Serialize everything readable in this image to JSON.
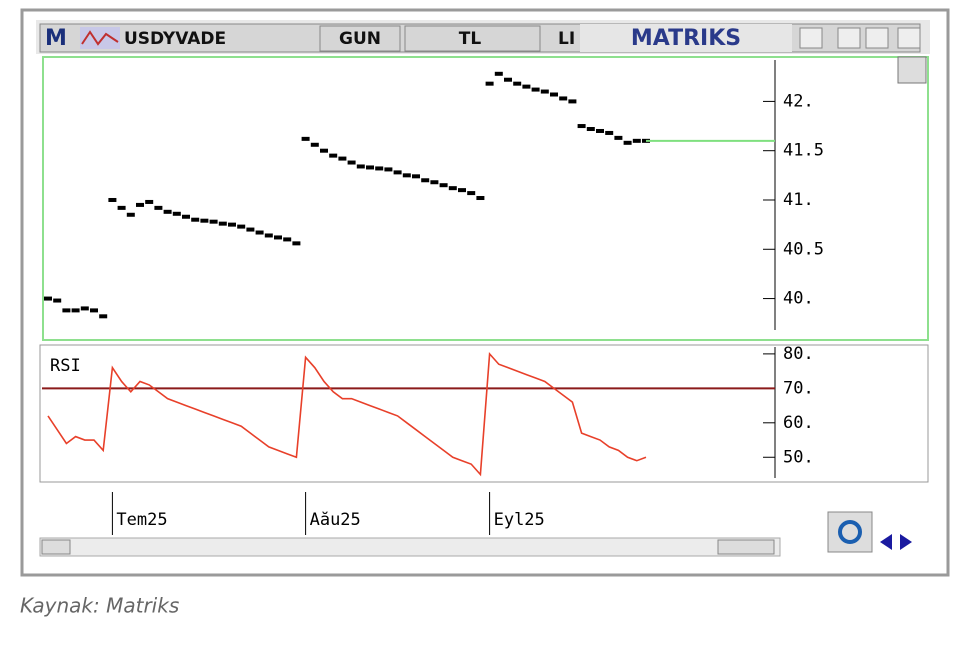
{
  "window": {
    "logo": "M",
    "symbol": "USDYVADE",
    "period": "GUN",
    "currency": "TL",
    "menu": "LI",
    "brand": "MATRIKS"
  },
  "caption": "Kaynak: Matriks",
  "chart_data": [
    {
      "type": "marks",
      "categories": [
        null,
        null,
        null,
        null,
        null,
        null,
        null,
        "Tem25",
        null,
        null,
        null,
        null,
        null,
        null,
        null,
        null,
        null,
        null,
        null,
        null,
        null,
        null,
        null,
        null,
        null,
        null,
        null,
        null,
        "Aău25",
        null,
        null,
        null,
        null,
        null,
        null,
        null,
        null,
        null,
        null,
        null,
        null,
        null,
        null,
        null,
        null,
        null,
        null,
        null,
        "Eyl25",
        null,
        null,
        null,
        null,
        null,
        null,
        null,
        null,
        null,
        null,
        null,
        null,
        null,
        null,
        null,
        null,
        null
      ],
      "values": [
        40.0,
        39.98,
        39.88,
        39.88,
        39.9,
        39.88,
        39.82,
        41.0,
        40.92,
        40.85,
        40.95,
        40.98,
        40.92,
        40.88,
        40.86,
        40.83,
        40.8,
        40.79,
        40.78,
        40.76,
        40.75,
        40.73,
        40.7,
        40.67,
        40.64,
        40.62,
        40.6,
        40.56,
        41.62,
        41.56,
        41.5,
        41.45,
        41.42,
        41.38,
        41.34,
        41.33,
        41.32,
        41.31,
        41.28,
        41.25,
        41.24,
        41.2,
        41.18,
        41.15,
        41.12,
        41.1,
        41.07,
        41.02,
        42.18,
        42.28,
        42.22,
        42.18,
        42.15,
        42.12,
        42.1,
        42.07,
        42.03,
        42.0,
        41.75,
        41.72,
        41.7,
        41.68,
        41.63,
        41.58,
        41.6,
        41.6
      ],
      "color": "#000000",
      "last_value_line_color": "#7fe07f",
      "ylim": [
        39.6,
        42.42
      ],
      "yticks": [
        {
          "value": 40,
          "label": "40."
        },
        40.5,
        {
          "value": 41,
          "label": "41."
        },
        41.5,
        {
          "value": 42,
          "label": "42."
        }
      ]
    },
    {
      "type": "line",
      "title": "RSI",
      "values": [
        62,
        58,
        54,
        56,
        55,
        55,
        52,
        76,
        72,
        69,
        72,
        71,
        69,
        67,
        66,
        65,
        64,
        63,
        62,
        61,
        60,
        59,
        57,
        55,
        53,
        52,
        51,
        50,
        79,
        76,
        72,
        69,
        67,
        67,
        66,
        65,
        64,
        63,
        62,
        60,
        58,
        56,
        54,
        52,
        50,
        49,
        48,
        45,
        80,
        77,
        76,
        75,
        74,
        73,
        72,
        70,
        68,
        66,
        57,
        56,
        55,
        53,
        52,
        50,
        49,
        50
      ],
      "color": "#e8402a",
      "reference_line": 70,
      "reference_color": "#8b1a1a",
      "ylim": [
        43.4,
        82
      ],
      "yticks": [
        {
          "value": 50,
          "label": "50."
        },
        {
          "value": 60,
          "label": "60."
        },
        {
          "value": 70,
          "label": "70."
        },
        {
          "value": 80,
          "label": "80."
        }
      ]
    }
  ]
}
